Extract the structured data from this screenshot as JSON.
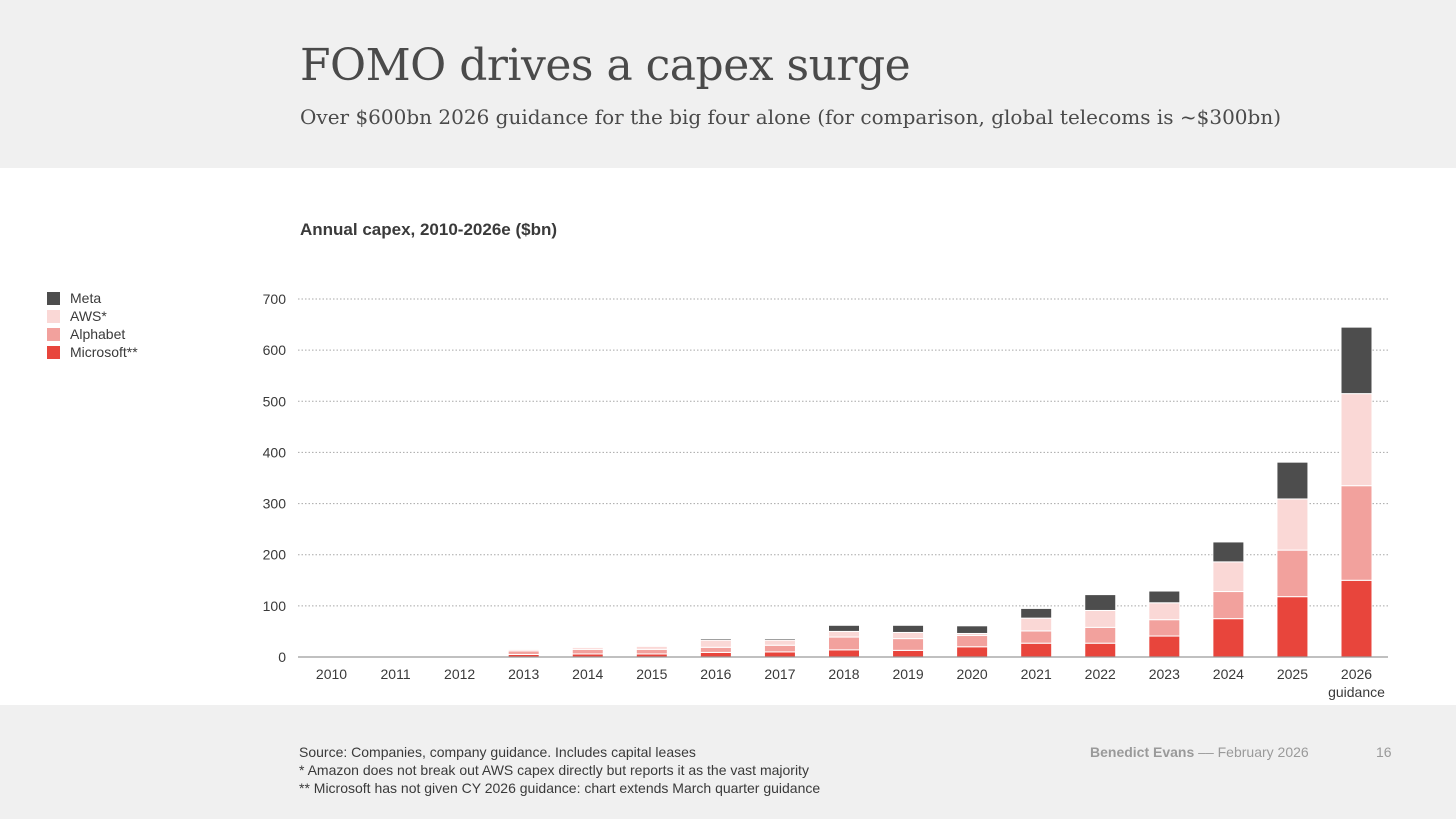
{
  "header": {
    "title": "FOMO drives a capex surge",
    "subtitle": "Over $600bn 2026 guidance for the big four alone (for comparison, global telecoms is ~$300bn)"
  },
  "footer": {
    "source": "Source: Companies, company guidance. Includes capital leases",
    "note1": "*  Amazon does not break out AWS capex directly but reports it as the vast majority",
    "note2": "** Microsoft has not given CY 2026 guidance: chart extends March quarter guidance",
    "author": "Benedict Evans",
    "separator": "––",
    "date": "February 2026",
    "page": "16"
  },
  "colors": {
    "meta": "#4d4d4d",
    "aws": "#fad8d6",
    "alphabet": "#f2a19d",
    "microsoft": "#e8453c",
    "grid": "#a8a8a8"
  },
  "chart_data": {
    "type": "bar",
    "stacked": true,
    "title": "Annual capex, 2010-2026e ($bn)",
    "xlabel": "",
    "ylabel": "",
    "ylim": [
      0,
      700
    ],
    "yticks": [
      0,
      100,
      200,
      300,
      400,
      500,
      600,
      700
    ],
    "grid": true,
    "legend_position": "left",
    "categories": [
      "2010",
      "2011",
      "2012",
      "2013",
      "2014",
      "2015",
      "2016",
      "2017",
      "2018",
      "2019",
      "2020",
      "2021",
      "2022",
      "2023",
      "2024",
      "2025",
      "2026"
    ],
    "category_sublabels": {
      "2026": "guidance"
    },
    "series": [
      {
        "name": "Microsoft**",
        "key": "microsoft",
        "values": [
          2,
          2,
          0,
          5,
          6,
          6,
          9,
          10,
          14,
          13,
          20,
          27,
          27,
          41,
          75,
          118,
          150
        ]
      },
      {
        "name": "Alphabet",
        "key": "alphabet",
        "values": [
          2,
          2,
          0,
          7,
          9,
          9,
          10,
          13,
          25,
          23,
          22,
          24,
          31,
          32,
          53,
          91,
          185
        ]
      },
      {
        "name": "AWS*",
        "key": "aws",
        "values": [
          1,
          1,
          0,
          3,
          4,
          6,
          14,
          10,
          11,
          12,
          4,
          25,
          33,
          33,
          58,
          100,
          180
        ]
      },
      {
        "name": "Meta",
        "key": "meta",
        "values": [
          0,
          0,
          0,
          1,
          1,
          1,
          3,
          3,
          12,
          14,
          15,
          19,
          31,
          23,
          39,
          72,
          130
        ]
      }
    ],
    "legend": [
      "Meta",
      "AWS*",
      "Alphabet",
      "Microsoft**"
    ]
  }
}
